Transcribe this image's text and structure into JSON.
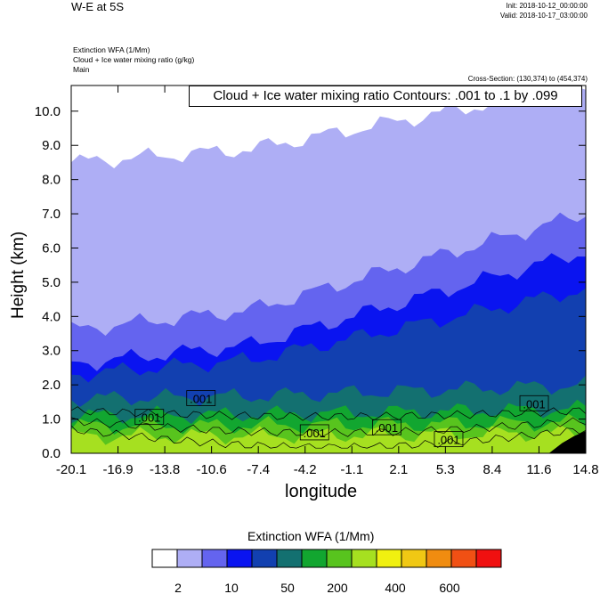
{
  "header": {
    "title": "W-E at 5S",
    "init": "Init: 2018-10-12_00:00:00",
    "valid": "Valid: 2018-10-17_03:00:00",
    "field1": "Extinction WFA   (1/Mm)",
    "field2": "Cloud + Ice water mixing ratio   (g/kg)",
    "field3": "Main",
    "cross_section": "Cross-Section: (130,374) to (454,374)",
    "contour_note": "Cloud + Ice water mixing ratio Contours: .001 to .1 by .099"
  },
  "chart_data": {
    "type": "heatmap",
    "xlabel": "longitude",
    "ylabel": "Height (km)",
    "x_ticks": [
      "-20.1",
      "-16.9",
      "-13.8",
      "-10.6",
      "-7.4",
      "-4.2",
      "-1.1",
      "2.1",
      "5.3",
      "8.4",
      "11.6",
      "14.8"
    ],
    "y_ticks": [
      "0.0",
      "1.0",
      "2.0",
      "3.0",
      "4.0",
      "5.0",
      "6.0",
      "7.0",
      "8.0",
      "9.0",
      "10.0"
    ],
    "xlim": [
      -20.1,
      14.8
    ],
    "ylim": [
      0,
      10.75
    ],
    "fill_levels": [
      {
        "top_left": 8.5,
        "top_right": 10.75,
        "color": "#aeaef5"
      },
      {
        "top_left": 3.6,
        "top_right": 7.0,
        "color": "#6464ef"
      },
      {
        "top_left": 2.6,
        "top_right": 5.9,
        "color": "#0a14f0"
      },
      {
        "top_left": 2.3,
        "top_right": 4.8,
        "color": "#1240b0"
      },
      {
        "top_left": 1.6,
        "top_right": 2.0,
        "color": "#137070"
      },
      {
        "top_left": 1.1,
        "top_right": 1.3,
        "color": "#12a630"
      },
      {
        "top_left": 0.8,
        "top_right": 0.9,
        "color": "#58c41e"
      },
      {
        "top_left": 0.5,
        "top_right": 0.6,
        "color": "#a6e020"
      }
    ],
    "contour_labels": [
      {
        "text": ".001",
        "lon": -14.8,
        "h": 1.05
      },
      {
        "text": ".001",
        "lon": -11.3,
        "h": 1.6
      },
      {
        "text": ".001",
        "lon": -3.6,
        "h": 0.6
      },
      {
        "text": ".001",
        "lon": 1.3,
        "h": 0.75
      },
      {
        "text": ".001",
        "lon": 5.5,
        "h": 0.4
      },
      {
        "text": ".001",
        "lon": 11.3,
        "h": 1.45
      }
    ],
    "colorbar": {
      "title": "Extinction WFA  (1/Mm)",
      "colors": [
        "#ffffff",
        "#aeaef5",
        "#6464ef",
        "#0a14f0",
        "#1240b0",
        "#137070",
        "#12a630",
        "#58c41e",
        "#a6e020",
        "#f0f010",
        "#f0c814",
        "#f08c10",
        "#f05014",
        "#f01010"
      ],
      "labels": [
        "2",
        "10",
        "50",
        "200",
        "400",
        "600"
      ]
    }
  }
}
